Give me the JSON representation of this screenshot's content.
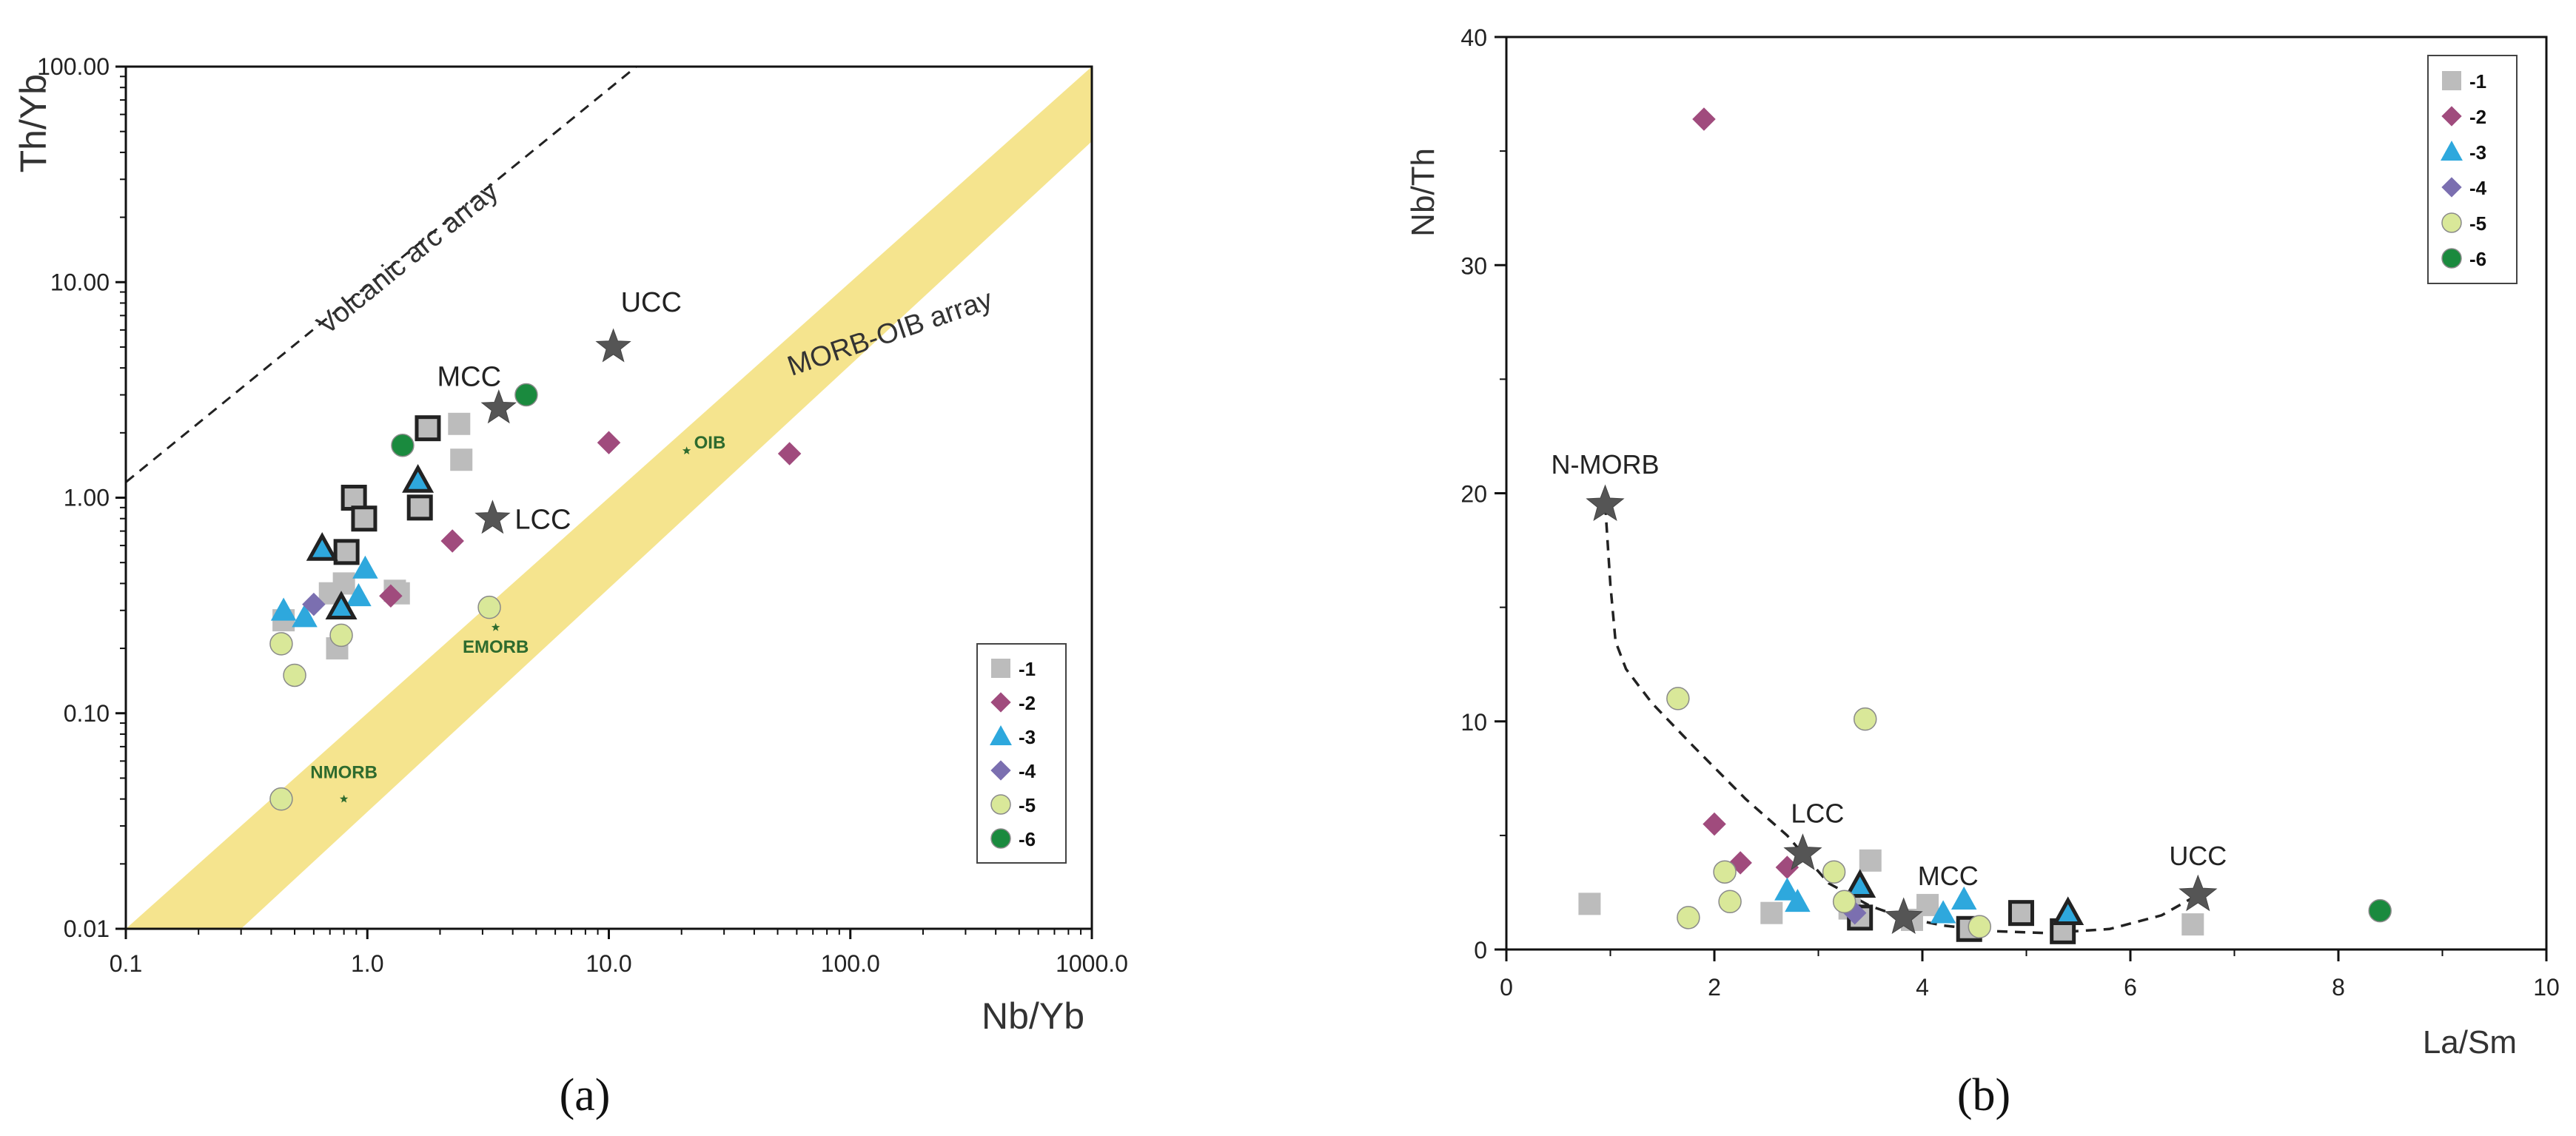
{
  "chart_data": [
    {
      "id": "a",
      "type": "scatter",
      "caption": "(a)",
      "xscale": "log",
      "yscale": "log",
      "xlabel": "Nb/Yb",
      "ylabel": "Th/Yb",
      "xlim": [
        0.1,
        1000
      ],
      "ylim": [
        0.01,
        100
      ],
      "xticks": [
        0.1,
        1,
        10,
        100,
        1000
      ],
      "xtick_labels": [
        "0.1",
        "1.0",
        "10.0",
        "100.0",
        "1000.0"
      ],
      "yticks": [
        0.01,
        0.1,
        1,
        10,
        100
      ],
      "ytick_labels": [
        "0.01",
        "0.10",
        "1.00",
        "10.00",
        "100.00"
      ],
      "arrays": [
        {
          "name": "Volcanic arc array",
          "style": "dashed",
          "points": [
            [
              0.1,
              1.18
            ],
            [
              13,
              100
            ]
          ]
        },
        {
          "name": "MORB-OIB array",
          "style": "band",
          "color": "#f5e48e",
          "lower": [
            [
              0.3,
              0.01
            ],
            [
              1000,
              45
            ]
          ],
          "upper": [
            [
              0.1,
              0.01
            ],
            [
              1000,
              100
            ]
          ]
        }
      ],
      "reference_points": [
        {
          "label": "UCC",
          "x": 10.44,
          "y": 5.0,
          "marker": "star"
        },
        {
          "label": "MCC",
          "x": 3.5,
          "y": 2.6,
          "marker": "star"
        },
        {
          "label": "LCC",
          "x": 3.3,
          "y": 0.8,
          "marker": "star"
        },
        {
          "label": "OIB",
          "x": 21,
          "y": 1.65,
          "marker": "small-star"
        },
        {
          "label": "EMORB",
          "x": 3.4,
          "y": 0.25,
          "marker": "small-star"
        },
        {
          "label": "NMORB",
          "x": 0.8,
          "y": 0.04,
          "marker": "small-star"
        }
      ],
      "legend": {
        "position": "bottom-right",
        "entries": [
          "-1",
          "-2",
          "-3",
          "-4",
          "-5",
          "-6"
        ]
      },
      "series": [
        {
          "name": "-1",
          "marker": "square",
          "color": "#bcbcbc",
          "points": [
            [
              0.45,
              0.27
            ],
            [
              0.7,
              0.36
            ],
            [
              0.8,
              0.4
            ],
            [
              0.75,
              0.2
            ],
            [
              1.3,
              0.37
            ],
            [
              1.35,
              0.36
            ],
            [
              2.4,
              2.2
            ],
            [
              2.45,
              1.5
            ]
          ]
        },
        {
          "name": "-1",
          "marker": "square-outlined",
          "color": "#bcbcbc",
          "points": [
            [
              0.82,
              0.56
            ],
            [
              0.88,
              1.0
            ],
            [
              0.97,
              0.8
            ],
            [
              1.65,
              0.9
            ],
            [
              1.78,
              2.1
            ]
          ]
        },
        {
          "name": "-2",
          "marker": "diamond",
          "color": "#a04b7d",
          "points": [
            [
              1.25,
              0.35
            ],
            [
              2.25,
              0.63
            ],
            [
              10,
              1.8
            ],
            [
              56,
              1.6
            ]
          ]
        },
        {
          "name": "-3",
          "marker": "triangle",
          "color": "#2ea8dd",
          "points": [
            [
              0.45,
              0.3
            ],
            [
              0.55,
              0.28
            ],
            [
              0.92,
              0.35
            ],
            [
              0.98,
              0.47
            ]
          ]
        },
        {
          "name": "-3",
          "marker": "triangle-outlined",
          "color": "#2ea8dd",
          "points": [
            [
              0.65,
              0.58
            ],
            [
              0.78,
              0.31
            ],
            [
              1.62,
              1.2
            ]
          ]
        },
        {
          "name": "-4",
          "marker": "diamond",
          "color": "#7b6fb0",
          "points": [
            [
              0.6,
              0.32
            ]
          ]
        },
        {
          "name": "-5",
          "marker": "circle",
          "color": "#d9e899",
          "points": [
            [
              0.44,
              0.21
            ],
            [
              0.5,
              0.15
            ],
            [
              0.78,
              0.23
            ],
            [
              0.44,
              0.04
            ],
            [
              3.2,
              0.31
            ]
          ]
        },
        {
          "name": "-6",
          "marker": "circle",
          "color": "#1a8a3e",
          "points": [
            [
              1.4,
              1.75
            ],
            [
              4.55,
              3.0
            ]
          ]
        }
      ]
    },
    {
      "id": "b",
      "type": "scatter",
      "caption": "(b)",
      "xlabel": "La/Sm",
      "ylabel": "Nb/Th",
      "xlim": [
        0,
        10
      ],
      "ylim": [
        0,
        40
      ],
      "xticks": [
        0,
        2,
        4,
        6,
        8,
        10
      ],
      "xtick_labels": [
        "0",
        "2",
        "4",
        "6",
        "8",
        "10"
      ],
      "yticks": [
        0,
        10,
        20,
        30,
        40
      ],
      "ytick_labels": [
        "0",
        "10",
        "20",
        "30",
        "40"
      ],
      "reference_points": [
        {
          "label": "N-MORB",
          "x": 0.95,
          "y": 19.5,
          "marker": "star"
        },
        {
          "label": "LCC",
          "x": 2.85,
          "y": 4.2,
          "marker": "star"
        },
        {
          "label": "MCC",
          "x": 3.82,
          "y": 1.4,
          "marker": "star"
        },
        {
          "label": "UCC",
          "x": 6.65,
          "y": 2.4,
          "marker": "star"
        }
      ],
      "mixing_curve": [
        [
          0.95,
          19.5
        ],
        [
          1.0,
          16
        ],
        [
          1.05,
          13.5
        ],
        [
          1.15,
          12.3
        ],
        [
          1.4,
          10.8
        ],
        [
          1.8,
          8.9
        ],
        [
          2.3,
          6.6
        ],
        [
          2.7,
          5.0
        ],
        [
          2.85,
          4.2
        ],
        [
          3.1,
          2.9
        ],
        [
          3.5,
          1.9
        ],
        [
          3.82,
          1.4
        ],
        [
          4.2,
          1.05
        ],
        [
          4.7,
          0.8
        ],
        [
          5.2,
          0.72
        ],
        [
          5.8,
          0.9
        ],
        [
          6.3,
          1.5
        ],
        [
          6.65,
          2.4
        ]
      ],
      "legend": {
        "position": "top-right",
        "entries": [
          "-1",
          "-2",
          "-3",
          "-4",
          "-5",
          "-6"
        ]
      },
      "series": [
        {
          "name": "-1",
          "marker": "square",
          "color": "#bcbcbc",
          "points": [
            [
              0.8,
              2.0
            ],
            [
              2.55,
              1.6
            ],
            [
              3.3,
              1.8
            ],
            [
              3.5,
              3.9
            ],
            [
              3.9,
              1.3
            ],
            [
              4.05,
              1.95
            ],
            [
              6.6,
              1.1
            ]
          ]
        },
        {
          "name": "-1",
          "marker": "square-outlined",
          "color": "#bcbcbc",
          "points": [
            [
              3.4,
              1.4
            ],
            [
              4.45,
              0.9
            ],
            [
              4.95,
              1.6
            ],
            [
              5.35,
              0.8
            ]
          ]
        },
        {
          "name": "-2",
          "marker": "diamond",
          "color": "#a04b7d",
          "points": [
            [
              1.9,
              36.4
            ],
            [
              2.0,
              5.5
            ],
            [
              2.25,
              3.8
            ],
            [
              2.7,
              3.6
            ]
          ]
        },
        {
          "name": "-3",
          "marker": "triangle",
          "color": "#2ea8dd",
          "points": [
            [
              2.7,
              2.6
            ],
            [
              2.8,
              2.1
            ],
            [
              4.2,
              1.6
            ],
            [
              4.4,
              2.2
            ]
          ]
        },
        {
          "name": "-3",
          "marker": "triangle-outlined",
          "color": "#2ea8dd",
          "points": [
            [
              3.4,
              2.8
            ],
            [
              5.4,
              1.6
            ]
          ]
        },
        {
          "name": "-4",
          "marker": "diamond",
          "color": "#7b6fb0",
          "points": [
            [
              3.35,
              1.6
            ]
          ]
        },
        {
          "name": "-5",
          "marker": "circle",
          "color": "#d9e899",
          "points": [
            [
              1.65,
              11.0
            ],
            [
              3.45,
              10.1
            ],
            [
              1.75,
              1.4
            ],
            [
              2.1,
              3.4
            ],
            [
              2.15,
              2.1
            ],
            [
              3.15,
              3.4
            ],
            [
              3.25,
              2.1
            ],
            [
              4.55,
              1.0
            ]
          ]
        },
        {
          "name": "-6",
          "marker": "circle",
          "color": "#1a8a3e",
          "points": [
            [
              8.4,
              1.7
            ]
          ]
        }
      ]
    }
  ]
}
